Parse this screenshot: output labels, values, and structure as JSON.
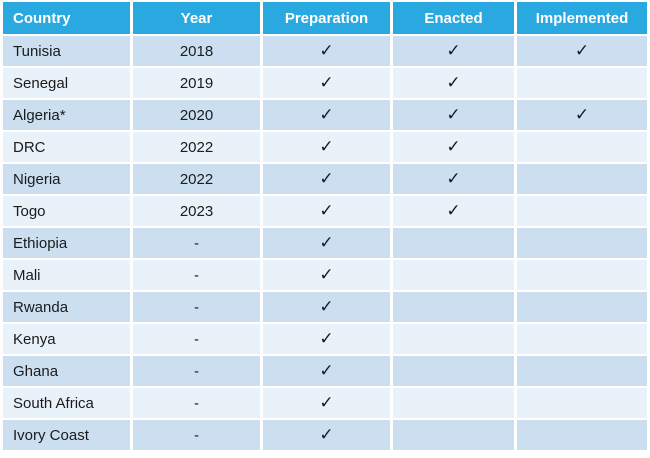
{
  "table": {
    "columns": [
      {
        "key": "country",
        "label": "Country",
        "align": "left"
      },
      {
        "key": "year",
        "label": "Year",
        "align": "center"
      },
      {
        "key": "preparation",
        "label": "Preparation",
        "align": "center"
      },
      {
        "key": "enacted",
        "label": "Enacted",
        "align": "center"
      },
      {
        "key": "implemented",
        "label": "Implemented",
        "align": "center"
      }
    ],
    "check_symbol": "✓",
    "rows": [
      {
        "country": "Tunisia",
        "year": "2018",
        "preparation": true,
        "enacted": true,
        "implemented": true
      },
      {
        "country": "Senegal",
        "year": "2019",
        "preparation": true,
        "enacted": true,
        "implemented": false
      },
      {
        "country": "Algeria*",
        "year": "2020",
        "preparation": true,
        "enacted": true,
        "implemented": true
      },
      {
        "country": "DRC",
        "year": "2022",
        "preparation": true,
        "enacted": true,
        "implemented": false
      },
      {
        "country": "Nigeria",
        "year": "2022",
        "preparation": true,
        "enacted": true,
        "implemented": false
      },
      {
        "country": "Togo",
        "year": "2023",
        "preparation": true,
        "enacted": true,
        "implemented": false
      },
      {
        "country": "Ethiopia",
        "year": "-",
        "preparation": true,
        "enacted": false,
        "implemented": false
      },
      {
        "country": "Mali",
        "year": "-",
        "preparation": true,
        "enacted": false,
        "implemented": false
      },
      {
        "country": "Rwanda",
        "year": "-",
        "preparation": true,
        "enacted": false,
        "implemented": false
      },
      {
        "country": "Kenya",
        "year": "-",
        "preparation": true,
        "enacted": false,
        "implemented": false
      },
      {
        "country": "Ghana",
        "year": "-",
        "preparation": true,
        "enacted": false,
        "implemented": false
      },
      {
        "country": "South Africa",
        "year": "-",
        "preparation": true,
        "enacted": false,
        "implemented": false
      },
      {
        "country": "Ivory Coast",
        "year": "-",
        "preparation": true,
        "enacted": false,
        "implemented": false
      }
    ],
    "colors": {
      "header_bg": "#29A9E0",
      "header_text": "#FFFFFF",
      "row_band_dark": "#CBDFF0",
      "row_band_light": "#E9F1F9",
      "body_text": "#1B1B1B",
      "grid_gap": "#FFFFFF"
    }
  },
  "chart_data": {
    "type": "table",
    "title": "",
    "columns": [
      "Country",
      "Year",
      "Preparation",
      "Enacted",
      "Implemented"
    ],
    "rows": [
      [
        "Tunisia",
        "2018",
        "✓",
        "✓",
        "✓"
      ],
      [
        "Senegal",
        "2019",
        "✓",
        "✓",
        ""
      ],
      [
        "Algeria*",
        "2020",
        "✓",
        "✓",
        "✓"
      ],
      [
        "DRC",
        "2022",
        "✓",
        "✓",
        ""
      ],
      [
        "Nigeria",
        "2022",
        "✓",
        "✓",
        ""
      ],
      [
        "Togo",
        "2023",
        "✓",
        "✓",
        ""
      ],
      [
        "Ethiopia",
        "-",
        "✓",
        "",
        ""
      ],
      [
        "Mali",
        "-",
        "✓",
        "",
        ""
      ],
      [
        "Rwanda",
        "-",
        "✓",
        "",
        ""
      ],
      [
        "Kenya",
        "-",
        "✓",
        "",
        ""
      ],
      [
        "Ghana",
        "-",
        "✓",
        "",
        ""
      ],
      [
        "South Africa",
        "-",
        "✓",
        "",
        ""
      ],
      [
        "Ivory Coast",
        "-",
        "✓",
        "",
        ""
      ]
    ],
    "layout_hints": {
      "banded_rows": true,
      "first_band": "dark",
      "grid": "white-gaps",
      "header_style": "solid-cyan"
    }
  }
}
